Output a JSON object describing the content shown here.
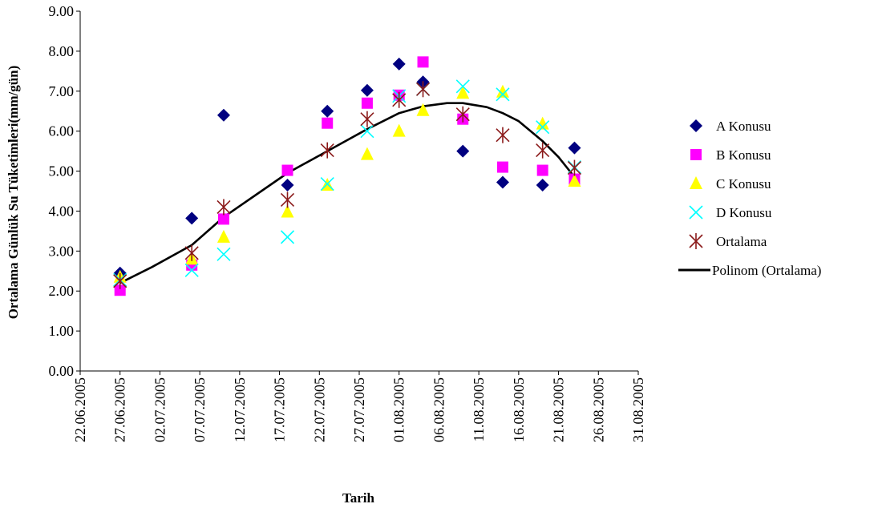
{
  "chart_data": {
    "type": "scatter",
    "xlabel": "Tarih",
    "ylabel": "Ortalama Günlük Su Tüketimleri(mm/gün)",
    "ylim": [
      0,
      9
    ],
    "y_ticks": [
      "0.00",
      "1.00",
      "2.00",
      "3.00",
      "4.00",
      "5.00",
      "6.00",
      "7.00",
      "8.00",
      "9.00"
    ],
    "x_ticks": [
      "22.06.2005",
      "27.06.2005",
      "02.07.2005",
      "07.07.2005",
      "12.07.2005",
      "17.07.2005",
      "22.07.2005",
      "27.07.2005",
      "01.08.2005",
      "06.08.2005",
      "11.08.2005",
      "16.08.2005",
      "21.08.2005",
      "26.08.2005",
      "31.08.2005"
    ],
    "x": [
      "2005-06-27",
      "2005-07-06",
      "2005-07-10",
      "2005-07-18",
      "2005-07-23",
      "2005-07-28",
      "2005-08-01",
      "2005-08-04",
      "2005-08-09",
      "2005-08-14",
      "2005-08-19",
      "2005-08-23"
    ],
    "grid": false,
    "legend_position": "right",
    "series": [
      {
        "name": "A Konusu",
        "marker": "diamond",
        "color": "#000080",
        "values": [
          2.45,
          3.82,
          6.4,
          4.65,
          6.5,
          7.02,
          7.68,
          7.23,
          5.5,
          4.72,
          4.65,
          5.58
        ]
      },
      {
        "name": "B Konusu",
        "marker": "square",
        "color": "#FF00FF",
        "values": [
          2.02,
          2.65,
          3.8,
          5.02,
          6.2,
          6.7,
          6.9,
          7.73,
          6.3,
          5.1,
          5.02,
          4.8
        ]
      },
      {
        "name": "C Konusu",
        "marker": "triangle",
        "color": "#FFFF00",
        "values": [
          2.35,
          2.8,
          3.35,
          3.98,
          4.65,
          5.42,
          6.0,
          6.52,
          6.95,
          6.98,
          6.18,
          4.75
        ]
      },
      {
        "name": "D Konusu",
        "marker": "x",
        "color": "#00FFFF",
        "values": [
          2.28,
          2.52,
          2.92,
          3.35,
          4.68,
          6.0,
          6.88,
          7.05,
          7.12,
          6.92,
          6.1,
          5.1
        ]
      },
      {
        "name": "Ortalama",
        "marker": "star",
        "color": "#8B1A1A",
        "values": [
          2.25,
          2.95,
          4.1,
          4.28,
          5.52,
          6.3,
          6.78,
          7.05,
          6.42,
          5.9,
          5.52,
          5.08
        ]
      }
    ],
    "trendline": {
      "name": "Polinom (Ortalama)",
      "color": "#000000",
      "x": [
        "2005-06-27",
        "2005-07-01",
        "2005-07-06",
        "2005-07-10",
        "2005-07-14",
        "2005-07-18",
        "2005-07-23",
        "2005-07-28",
        "2005-08-01",
        "2005-08-04",
        "2005-08-07",
        "2005-08-09",
        "2005-08-12",
        "2005-08-14",
        "2005-08-16",
        "2005-08-19",
        "2005-08-21",
        "2005-08-23"
      ],
      "values": [
        2.2,
        2.6,
        3.15,
        3.85,
        4.4,
        4.95,
        5.5,
        6.05,
        6.45,
        6.62,
        6.7,
        6.7,
        6.6,
        6.45,
        6.25,
        5.75,
        5.35,
        4.85
      ]
    }
  }
}
